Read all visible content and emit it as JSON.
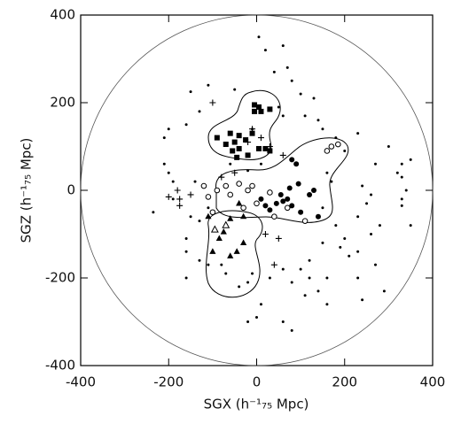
{
  "chart_data": {
    "type": "scatter",
    "xlabel": "SGX (h⁻¹₇₅ Mpc)",
    "ylabel": "SGZ (h⁻¹₇₅ Mpc)",
    "xlim": [
      -400,
      400
    ],
    "ylim": [
      -400,
      400
    ],
    "xticks": [
      -400,
      -200,
      0,
      200,
      400
    ],
    "yticks": [
      -400,
      -200,
      0,
      200,
      400
    ],
    "boundary_circle": true,
    "series": [
      {
        "marker": "dot",
        "color": "#000000",
        "x": [
          5,
          20,
          60,
          -110,
          -150,
          -130,
          -160,
          -200,
          -210,
          -210,
          -200,
          -190,
          -190,
          -235,
          -160,
          -150,
          -130,
          -110,
          -160,
          80,
          100,
          130,
          70,
          40,
          110,
          140,
          150,
          60,
          50,
          180,
          230,
          200,
          300,
          320,
          330,
          340,
          330,
          330,
          350,
          260,
          240,
          250,
          230,
          280,
          260,
          200,
          190,
          230,
          210,
          150,
          120,
          100,
          120,
          80,
          160,
          140,
          60,
          30,
          -10,
          -20,
          -40,
          -70,
          -80,
          10,
          0,
          -20,
          60,
          80,
          110,
          160,
          240,
          230,
          270,
          330,
          350,
          270,
          -10,
          10,
          -60,
          -20,
          -140,
          -130,
          -110,
          150,
          180,
          170,
          160,
          -50,
          -160,
          290
        ],
        "values": [
          350,
          320,
          330,
          240,
          225,
          180,
          150,
          140,
          120,
          60,
          40,
          20,
          -20,
          -50,
          -110,
          -60,
          -160,
          -170,
          -140,
          250,
          220,
          210,
          280,
          270,
          170,
          160,
          140,
          170,
          190,
          120,
          130,
          90,
          100,
          40,
          30,
          0,
          -20,
          -35,
          -80,
          -10,
          10,
          -30,
          -60,
          -80,
          -100,
          -110,
          -130,
          -140,
          -150,
          -120,
          -160,
          -180,
          -200,
          -210,
          -200,
          -230,
          -180,
          -200,
          -190,
          -210,
          -220,
          -190,
          -170,
          -260,
          -290,
          -300,
          -300,
          -320,
          -240,
          -260,
          -250,
          -200,
          -170,
          60,
          70,
          60,
          140,
          60,
          60,
          45,
          20,
          -70,
          -40,
          -40,
          -80,
          20,
          40,
          230,
          -200,
          -230
        ]
      },
      {
        "marker": "square",
        "color": "#000000",
        "x": [
          -5,
          5,
          -5,
          10,
          30,
          -60,
          -40,
          -50,
          -70,
          -55,
          -40,
          -25,
          -10,
          5,
          20,
          30,
          -90,
          -20,
          -45
        ],
        "values": [
          195,
          190,
          180,
          180,
          185,
          130,
          125,
          110,
          105,
          90,
          95,
          115,
          130,
          95,
          95,
          90,
          120,
          80,
          75
        ]
      },
      {
        "marker": "triangle",
        "color": "#000000",
        "x": [
          -110,
          -60,
          -30,
          -85,
          -45,
          -60,
          -100,
          -40,
          -75,
          -30
        ],
        "values": [
          -60,
          -65,
          -60,
          -110,
          -140,
          -150,
          -140,
          -30,
          -95,
          -120
        ]
      },
      {
        "marker": "open-triangle",
        "color": "#000000",
        "x": [
          -70,
          -95
        ],
        "values": [
          -80,
          -90
        ]
      },
      {
        "marker": "circle",
        "color": "#000000",
        "x": [
          80,
          90,
          70,
          80,
          20,
          30,
          45,
          60,
          100,
          120,
          130,
          140,
          95,
          75,
          10,
          55
        ],
        "values": [
          70,
          60,
          -20,
          -35,
          -35,
          -45,
          -30,
          -25,
          -50,
          -10,
          0,
          -60,
          15,
          5,
          -20,
          -10
        ]
      },
      {
        "marker": "open-circle",
        "color": "#000000",
        "x": [
          -120,
          -110,
          -90,
          -70,
          -40,
          -20,
          -60,
          -30,
          0,
          -10,
          30,
          40,
          110,
          170,
          185,
          160,
          -100,
          70
        ],
        "values": [
          10,
          -15,
          0,
          10,
          15,
          0,
          -10,
          -40,
          -30,
          10,
          -5,
          -60,
          -70,
          100,
          105,
          90,
          -50,
          -40
        ]
      },
      {
        "marker": "plus",
        "color": "#000000",
        "x": [
          -10,
          -20,
          10,
          30,
          -150,
          -175,
          -180,
          -175,
          -200,
          -50,
          60,
          50,
          20,
          40,
          -100,
          -80
        ],
        "values": [
          140,
          110,
          120,
          100,
          -10,
          -20,
          0,
          -35,
          -15,
          40,
          80,
          -110,
          -100,
          -170,
          200,
          30
        ]
      }
    ]
  }
}
